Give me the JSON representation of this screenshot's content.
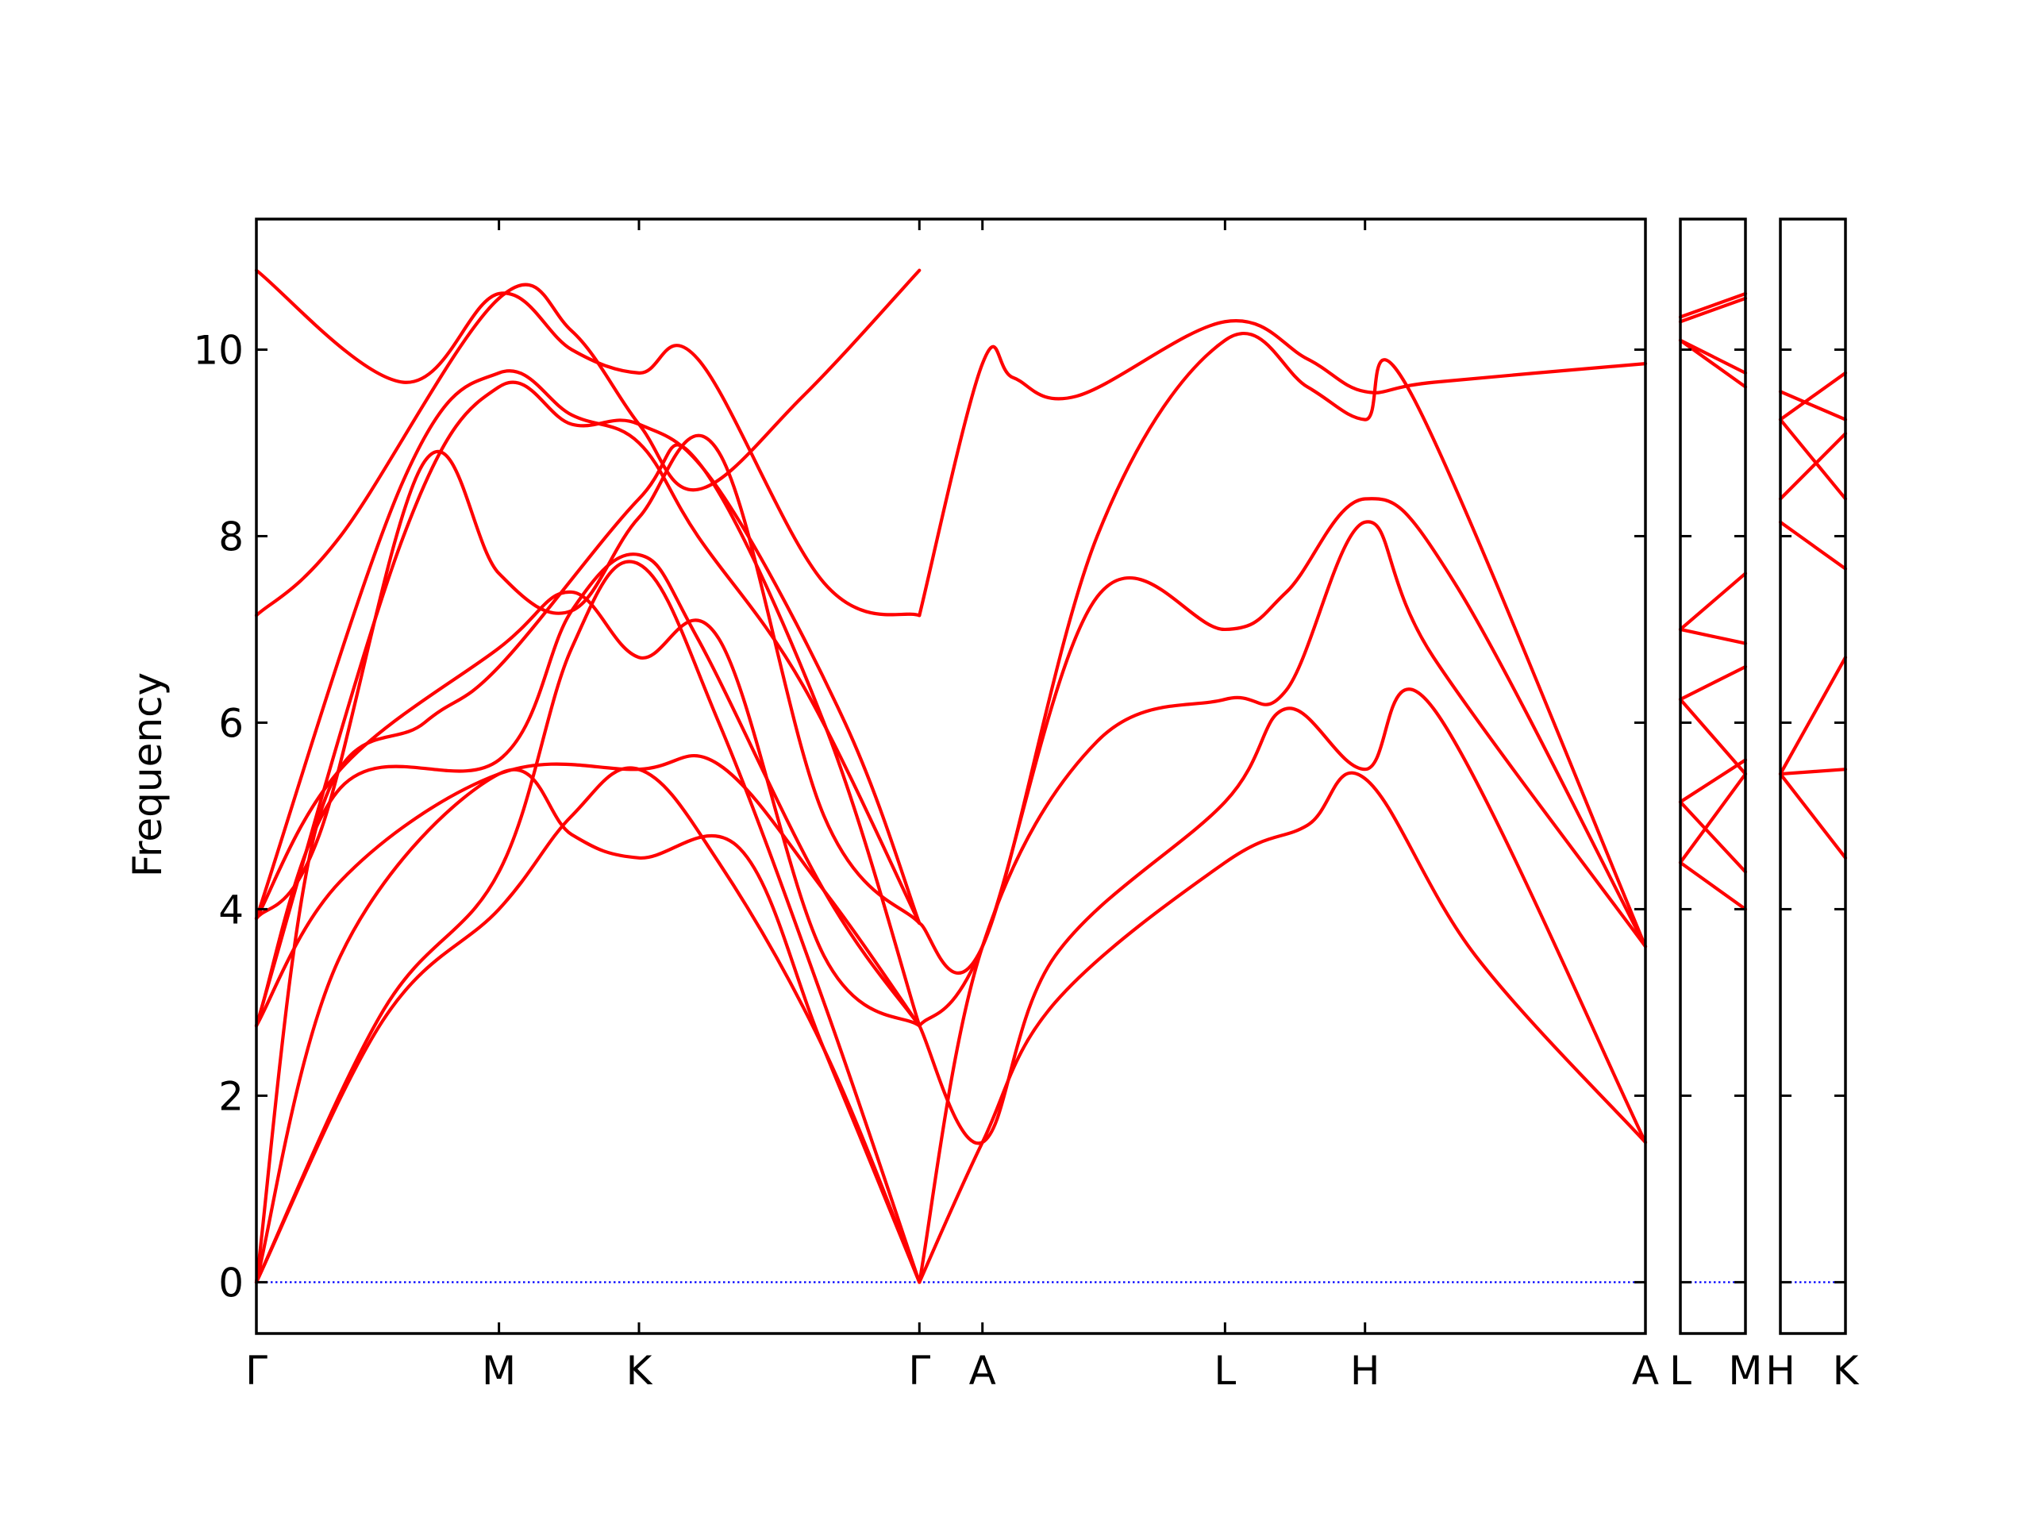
{
  "chart_data": {
    "type": "line",
    "ylabel": "Frequency",
    "xlabel": "",
    "ylim": [
      -0.55,
      11.4
    ],
    "y_ticks": [
      "0",
      "2",
      "4",
      "6",
      "8",
      "10"
    ],
    "zero_line": true,
    "colors": {
      "bands": "#ff0000",
      "zero_line": "#0000ff",
      "frame": "#000000"
    },
    "panels": [
      {
        "path_labels": [
          "Γ",
          "M",
          "K",
          "Γ",
          "A",
          "L",
          "H",
          "A"
        ],
        "path_positions": [
          0,
          0.577,
          0.91,
          1.577,
          1.727,
          2.304,
          2.637,
          3.304
        ],
        "bands": [
          {
            "x": [
              0,
              0.3,
              0.577,
              0.75,
              0.91,
              1.1,
              1.35,
              1.577
            ],
            "y": [
              0,
              2.8,
              4.0,
              5.0,
              5.5,
              4.5,
              2.5,
              0
            ]
          },
          {
            "x": [
              0,
              0.3,
              0.577,
              0.75,
              0.91,
              1.1,
              1.35,
              1.577
            ],
            "y": [
              0,
              2.9,
              4.4,
              6.8,
              7.7,
              6.0,
              3.0,
              0
            ]
          },
          {
            "x": [
              0,
              0.2,
              0.577,
              0.75,
              0.91,
              1.15,
              1.35,
              1.577
            ],
            "y": [
              0,
              3.5,
              5.45,
              4.8,
              4.55,
              4.65,
              2.5,
              0
            ]
          },
          {
            "x": [
              0,
              0.2,
              0.577,
              0.91,
              1.1,
              1.35,
              1.577
            ],
            "y": [
              2.75,
              4.3,
              5.45,
              5.5,
              5.55,
              4.2,
              2.75
            ]
          },
          {
            "x": [
              0,
              0.2,
              0.577,
              0.75,
              0.91,
              1.05,
              1.35,
              1.577
            ],
            "y": [
              2.75,
              5.3,
              5.6,
              7.2,
              7.8,
              6.9,
              4.2,
              2.75
            ]
          },
          {
            "x": [
              0,
              0.15,
              0.4,
              0.577,
              0.91,
              1.05,
              1.35,
              1.577
            ],
            "y": [
              0,
              5.0,
              6.0,
              6.6,
              8.4,
              8.8,
              6.0,
              2.75
            ]
          },
          {
            "x": [
              0,
              0.2,
              0.577,
              0.75,
              0.91,
              1.1,
              1.35,
              1.577
            ],
            "y": [
              3.9,
              5.5,
              6.8,
              7.4,
              6.7,
              6.9,
              3.5,
              2.75
            ]
          },
          {
            "x": [
              0,
              0.15,
              0.4,
              0.577,
              0.75,
              0.91,
              1.1,
              1.35,
              1.577
            ],
            "y": [
              3.9,
              4.8,
              8.8,
              7.6,
              7.2,
              8.2,
              8.9,
              5.0,
              3.85
            ]
          },
          {
            "x": [
              0,
              0.35,
              0.577,
              0.75,
              0.91,
              1.1,
              1.4,
              1.577
            ],
            "y": [
              2.75,
              8.0,
              9.6,
              9.2,
              9.2,
              8.5,
              6.0,
              3.85
            ]
          },
          {
            "x": [
              0,
              0.35,
              0.577,
              0.75,
              0.91,
              1.05,
              1.3,
              1.577
            ],
            "y": [
              3.9,
              8.6,
              9.75,
              9.3,
              9.0,
              8.0,
              6.4,
              3.85
            ]
          },
          {
            "x": [
              0,
              0.2,
              0.577,
              0.75,
              0.91,
              1.05,
              1.3,
              1.577
            ],
            "y": [
              7.15,
              8.0,
              10.55,
              10.2,
              9.2,
              8.5,
              9.5,
              10.85
            ]
          },
          {
            "x": [
              0,
              0.35,
              0.577,
              0.75,
              0.91,
              1.05,
              1.35,
              1.577
            ],
            "y": [
              10.85,
              9.65,
              10.6,
              10.0,
              9.75,
              9.9,
              7.5,
              7.15
            ]
          },
          {
            "x": [
              1.577,
              1.727,
              1.9,
              2.304,
              2.5,
              2.637,
              2.9,
              3.304
            ],
            "y": [
              0,
              1.5,
              3.0,
              4.5,
              4.9,
              5.4,
              3.5,
              1.5
            ]
          },
          {
            "x": [
              1.577,
              1.727,
              1.9,
              2.304,
              2.45,
              2.637,
              2.8,
              3.304
            ],
            "y": [
              2.75,
              1.5,
              3.5,
              5.15,
              6.15,
              5.5,
              6.15,
              1.5
            ]
          },
          {
            "x": [
              1.577,
              1.727,
              2.0,
              2.304,
              2.45,
              2.637,
              2.8,
              3.304
            ],
            "y": [
              0,
              3.6,
              5.8,
              6.25,
              6.35,
              8.15,
              6.7,
              3.6
            ]
          },
          {
            "x": [
              1.577,
              1.727,
              2.0,
              2.304,
              2.45,
              2.637,
              2.85,
              3.304
            ],
            "y": [
              2.75,
              3.6,
              7.35,
              7.0,
              7.4,
              8.4,
              7.5,
              3.6
            ]
          },
          {
            "x": [
              1.577,
              1.727,
              2.0,
              2.304,
              2.5,
              2.637,
              2.75,
              3.304
            ],
            "y": [
              3.85,
              3.6,
              8.0,
              10.1,
              9.6,
              9.25,
              9.5,
              3.6
            ]
          },
          {
            "x": [
              1.577,
              1.727,
              1.8,
              1.95,
              2.304,
              2.5,
              2.637,
              2.8,
              3.304
            ],
            "y": [
              7.15,
              9.85,
              9.7,
              9.5,
              10.3,
              9.9,
              9.55,
              9.65,
              9.85
            ]
          }
        ]
      },
      {
        "path_labels": [
          "L",
          "M"
        ],
        "path_positions": [
          0,
          0.5
        ],
        "bands": [
          {
            "x": [
              0,
              0.5
            ],
            "y": [
              4.5,
              4.0
            ]
          },
          {
            "x": [
              0,
              0.5
            ],
            "y": [
              4.5,
              5.45
            ]
          },
          {
            "x": [
              0,
              0.5
            ],
            "y": [
              5.15,
              4.4
            ]
          },
          {
            "x": [
              0,
              0.5
            ],
            "y": [
              5.15,
              5.6
            ]
          },
          {
            "x": [
              0,
              0.5
            ],
            "y": [
              6.25,
              6.6
            ]
          },
          {
            "x": [
              0,
              0.5
            ],
            "y": [
              6.25,
              5.45
            ]
          },
          {
            "x": [
              0,
              0.5
            ],
            "y": [
              7.0,
              6.85
            ]
          },
          {
            "x": [
              0,
              0.5
            ],
            "y": [
              7.0,
              7.6
            ]
          },
          {
            "x": [
              0,
              0.5
            ],
            "y": [
              10.1,
              9.6
            ]
          },
          {
            "x": [
              0,
              0.5
            ],
            "y": [
              10.1,
              9.75
            ]
          },
          {
            "x": [
              0,
              0.5
            ],
            "y": [
              10.3,
              10.55
            ]
          },
          {
            "x": [
              0,
              0.5
            ],
            "y": [
              10.35,
              10.6
            ]
          }
        ]
      },
      {
        "path_labels": [
          "H",
          "K"
        ],
        "path_positions": [
          0,
          0.5
        ],
        "bands": [
          {
            "x": [
              0,
              0.5
            ],
            "y": [
              5.45,
              4.55
            ]
          },
          {
            "x": [
              0,
              0.5
            ],
            "y": [
              5.45,
              5.5
            ]
          },
          {
            "x": [
              0,
              0.5
            ],
            "y": [
              5.45,
              6.7
            ]
          },
          {
            "x": [
              0,
              0.5
            ],
            "y": [
              8.15,
              7.65
            ]
          },
          {
            "x": [
              0,
              0.5
            ],
            "y": [
              8.4,
              9.1
            ]
          },
          {
            "x": [
              0,
              0.5
            ],
            "y": [
              9.25,
              8.4
            ]
          },
          {
            "x": [
              0,
              0.5
            ],
            "y": [
              9.55,
              9.25
            ]
          },
          {
            "x": [
              0,
              0.5
            ],
            "y": [
              9.25,
              9.75
            ]
          }
        ]
      }
    ]
  }
}
